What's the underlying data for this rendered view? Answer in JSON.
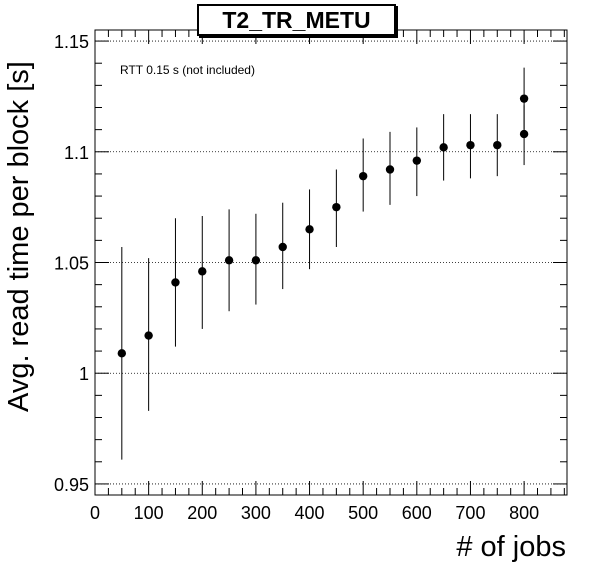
{
  "chart_data": {
    "type": "scatter",
    "title": "T2_TR_METU",
    "xlabel": "# of jobs",
    "ylabel": "Avg. read time per block [s]",
    "annotation": "RTT 0.15 s (not included)",
    "xlim": [
      0,
      880
    ],
    "ylim": [
      0.945,
      1.155
    ],
    "x_ticks": [
      0,
      100,
      200,
      300,
      400,
      500,
      600,
      700,
      800
    ],
    "x_tick_labels": [
      "0",
      "100",
      "200",
      "300",
      "400",
      "500",
      "600",
      "700",
      "800"
    ],
    "y_ticks": [
      0.95,
      1.0,
      1.05,
      1.1,
      1.15
    ],
    "y_tick_labels": [
      "0.95",
      "1",
      "1.05",
      "1.1",
      "1.15"
    ],
    "grid": true,
    "series": [
      {
        "marker": "filled-circle",
        "color": "#000000",
        "points": [
          {
            "x": 50,
            "y": 1.009,
            "err_low": 0.961,
            "err_high": 1.057
          },
          {
            "x": 100,
            "y": 1.017,
            "err_low": 0.983,
            "err_high": 1.052
          },
          {
            "x": 150,
            "y": 1.041,
            "err_low": 1.012,
            "err_high": 1.07
          },
          {
            "x": 200,
            "y": 1.046,
            "err_low": 1.02,
            "err_high": 1.071
          },
          {
            "x": 250,
            "y": 1.051,
            "err_low": 1.028,
            "err_high": 1.074
          },
          {
            "x": 300,
            "y": 1.051,
            "err_low": 1.031,
            "err_high": 1.072
          },
          {
            "x": 350,
            "y": 1.057,
            "err_low": 1.038,
            "err_high": 1.077
          },
          {
            "x": 400,
            "y": 1.065,
            "err_low": 1.047,
            "err_high": 1.083
          },
          {
            "x": 450,
            "y": 1.075,
            "err_low": 1.057,
            "err_high": 1.092
          },
          {
            "x": 500,
            "y": 1.089,
            "err_low": 1.073,
            "err_high": 1.106
          },
          {
            "x": 550,
            "y": 1.092,
            "err_low": 1.076,
            "err_high": 1.109
          },
          {
            "x": 600,
            "y": 1.096,
            "err_low": 1.08,
            "err_high": 1.111
          },
          {
            "x": 650,
            "y": 1.102,
            "err_low": 1.087,
            "err_high": 1.117
          },
          {
            "x": 700,
            "y": 1.103,
            "err_low": 1.088,
            "err_high": 1.117
          },
          {
            "x": 750,
            "y": 1.103,
            "err_low": 1.089,
            "err_high": 1.117
          },
          {
            "x": 800,
            "y": 1.108,
            "err_low": 1.094,
            "err_high": 1.121
          },
          {
            "x": 800,
            "y": 1.124,
            "err_low": 1.11,
            "err_high": 1.138
          }
        ]
      }
    ]
  }
}
